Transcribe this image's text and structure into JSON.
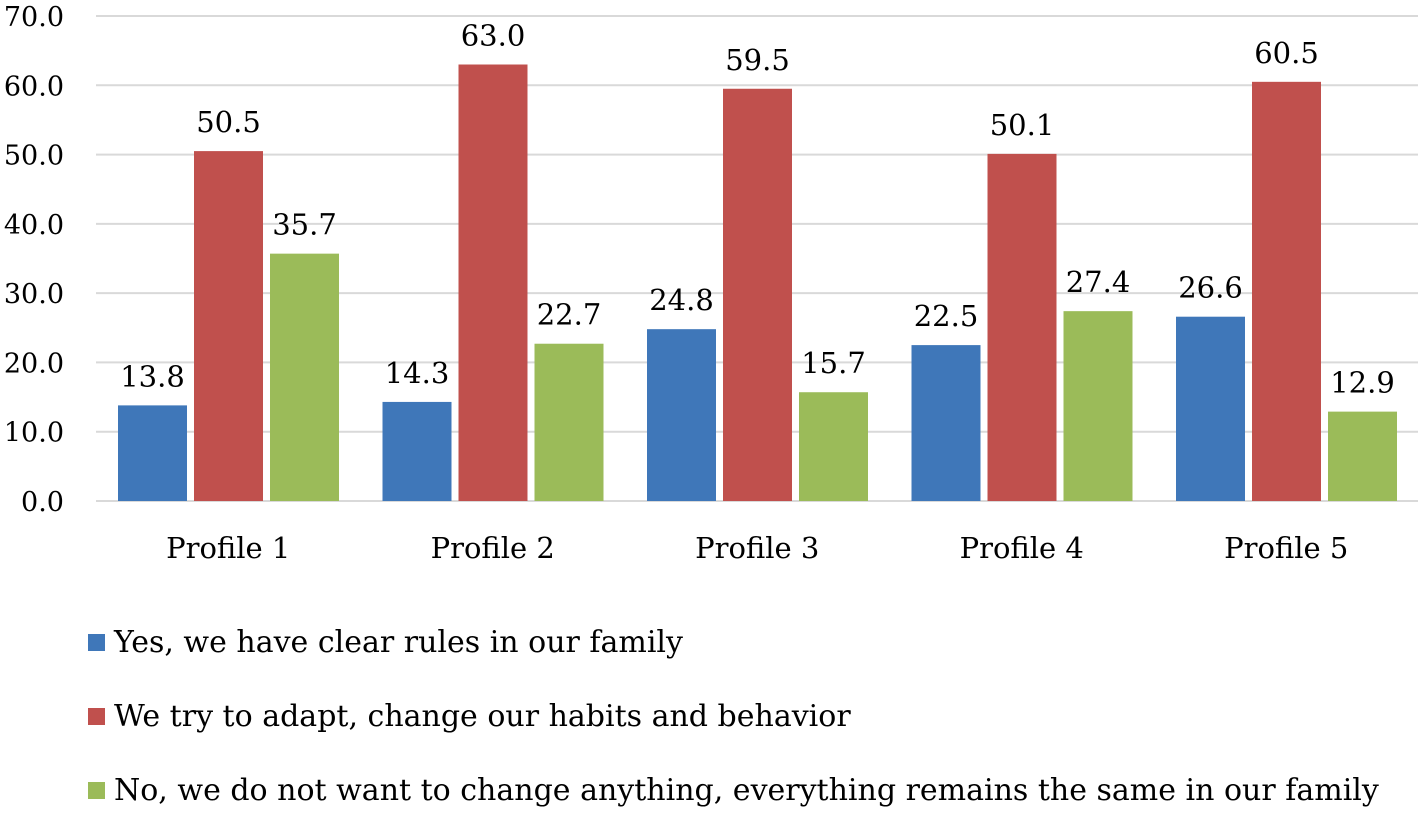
{
  "chart_data": {
    "type": "bar",
    "title": "",
    "xlabel": "",
    "ylabel": "",
    "ylim": [
      0,
      70
    ],
    "yticks": [
      "0.0",
      "10.0",
      "20.0",
      "30.0",
      "40.0",
      "50.0",
      "60.0",
      "70.0"
    ],
    "grid": true,
    "legend_position": "bottom",
    "categories": [
      "Profile 1",
      "Profile 2",
      "Profile 3",
      "Profile 4",
      "Profile 5"
    ],
    "series": [
      {
        "name": "Yes, we have clear rules in our family",
        "color": "#3f77b9",
        "values": [
          13.8,
          14.3,
          24.8,
          22.5,
          26.6
        ],
        "labels": [
          "13.8",
          "14.3",
          "24.8",
          "22.5",
          "26.6"
        ]
      },
      {
        "name": "We try to adapt, change our habits and behavior",
        "color": "#c0504d",
        "values": [
          50.5,
          63.0,
          59.5,
          50.1,
          60.5
        ],
        "labels": [
          "50.5",
          "63.0",
          "59.5",
          "50.1",
          "60.5"
        ]
      },
      {
        "name": "No, we do not want to change anything, everything remains the same in our family",
        "color": "#9bbb59",
        "values": [
          35.7,
          22.7,
          15.7,
          27.4,
          12.9
        ],
        "labels": [
          "35.7",
          "22.7",
          "15.7",
          "27.4",
          "12.9"
        ]
      }
    ]
  }
}
